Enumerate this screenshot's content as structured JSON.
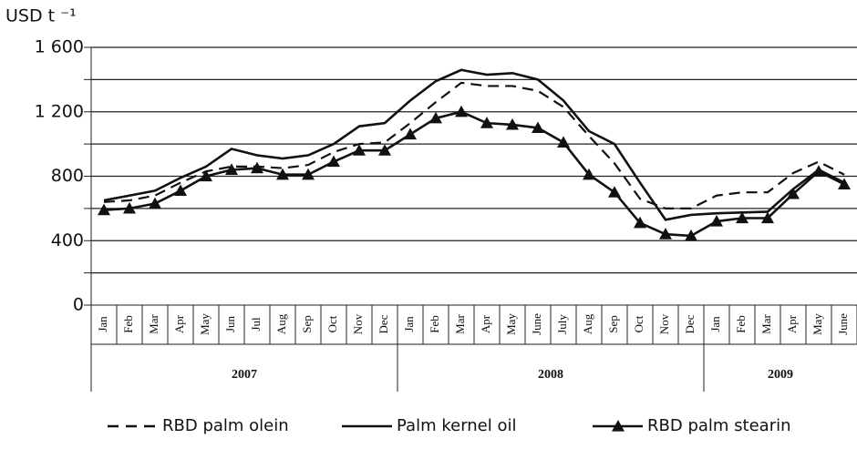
{
  "chart_data": {
    "type": "line",
    "y_label": "USD t ⁻¹",
    "categories": [
      "Jan",
      "Feb",
      "Mar",
      "Apr",
      "May",
      "Jun",
      "Jul",
      "Aug",
      "Sep",
      "Oct",
      "Nov",
      "Dec",
      "Jan",
      "Feb",
      "Mar",
      "Apr",
      "May",
      "June",
      "July",
      "Aug",
      "Sep",
      "Oct",
      "Nov",
      "Dec",
      "Jan",
      "Feb",
      "Mar",
      "Apr",
      "May",
      "June"
    ],
    "groups": [
      {
        "label": "2007",
        "count": 12
      },
      {
        "label": "2008",
        "count": 12
      },
      {
        "label": "2009",
        "count": 6
      }
    ],
    "series": [
      {
        "name": "RBD palm olein",
        "color": "#111111",
        "dash": true,
        "marker": false,
        "values": [
          640,
          650,
          680,
          760,
          830,
          860,
          860,
          850,
          870,
          950,
          1000,
          1010,
          1130,
          1260,
          1380,
          1360,
          1360,
          1330,
          1230,
          1050,
          880,
          660,
          600,
          600,
          680,
          700,
          700,
          820,
          890,
          810
        ]
      },
      {
        "name": "Palm kernel oil",
        "color": "#111111",
        "dash": false,
        "marker": false,
        "values": [
          650,
          680,
          710,
          790,
          860,
          970,
          930,
          910,
          930,
          1000,
          1110,
          1130,
          1270,
          1390,
          1460,
          1430,
          1440,
          1400,
          1270,
          1080,
          1000,
          760,
          530,
          560,
          570,
          575,
          580,
          720,
          840,
          760
        ]
      },
      {
        "name": "RBD palm stearin",
        "color": "#111111",
        "dash": false,
        "marker": true,
        "values": [
          590,
          600,
          630,
          710,
          800,
          840,
          850,
          810,
          810,
          890,
          960,
          960,
          1060,
          1160,
          1200,
          1130,
          1120,
          1100,
          1010,
          810,
          700,
          510,
          440,
          430,
          520,
          540,
          540,
          690,
          830,
          750
        ]
      }
    ],
    "ylim": [
      0,
      1600
    ],
    "yticks": [
      0,
      400,
      800,
      {
        "value": 1200,
        "label": "1 200"
      },
      {
        "value": 1600,
        "label": "1 600"
      }
    ],
    "ygrid": [
      200,
      600,
      1000,
      1400
    ],
    "grid": true
  }
}
